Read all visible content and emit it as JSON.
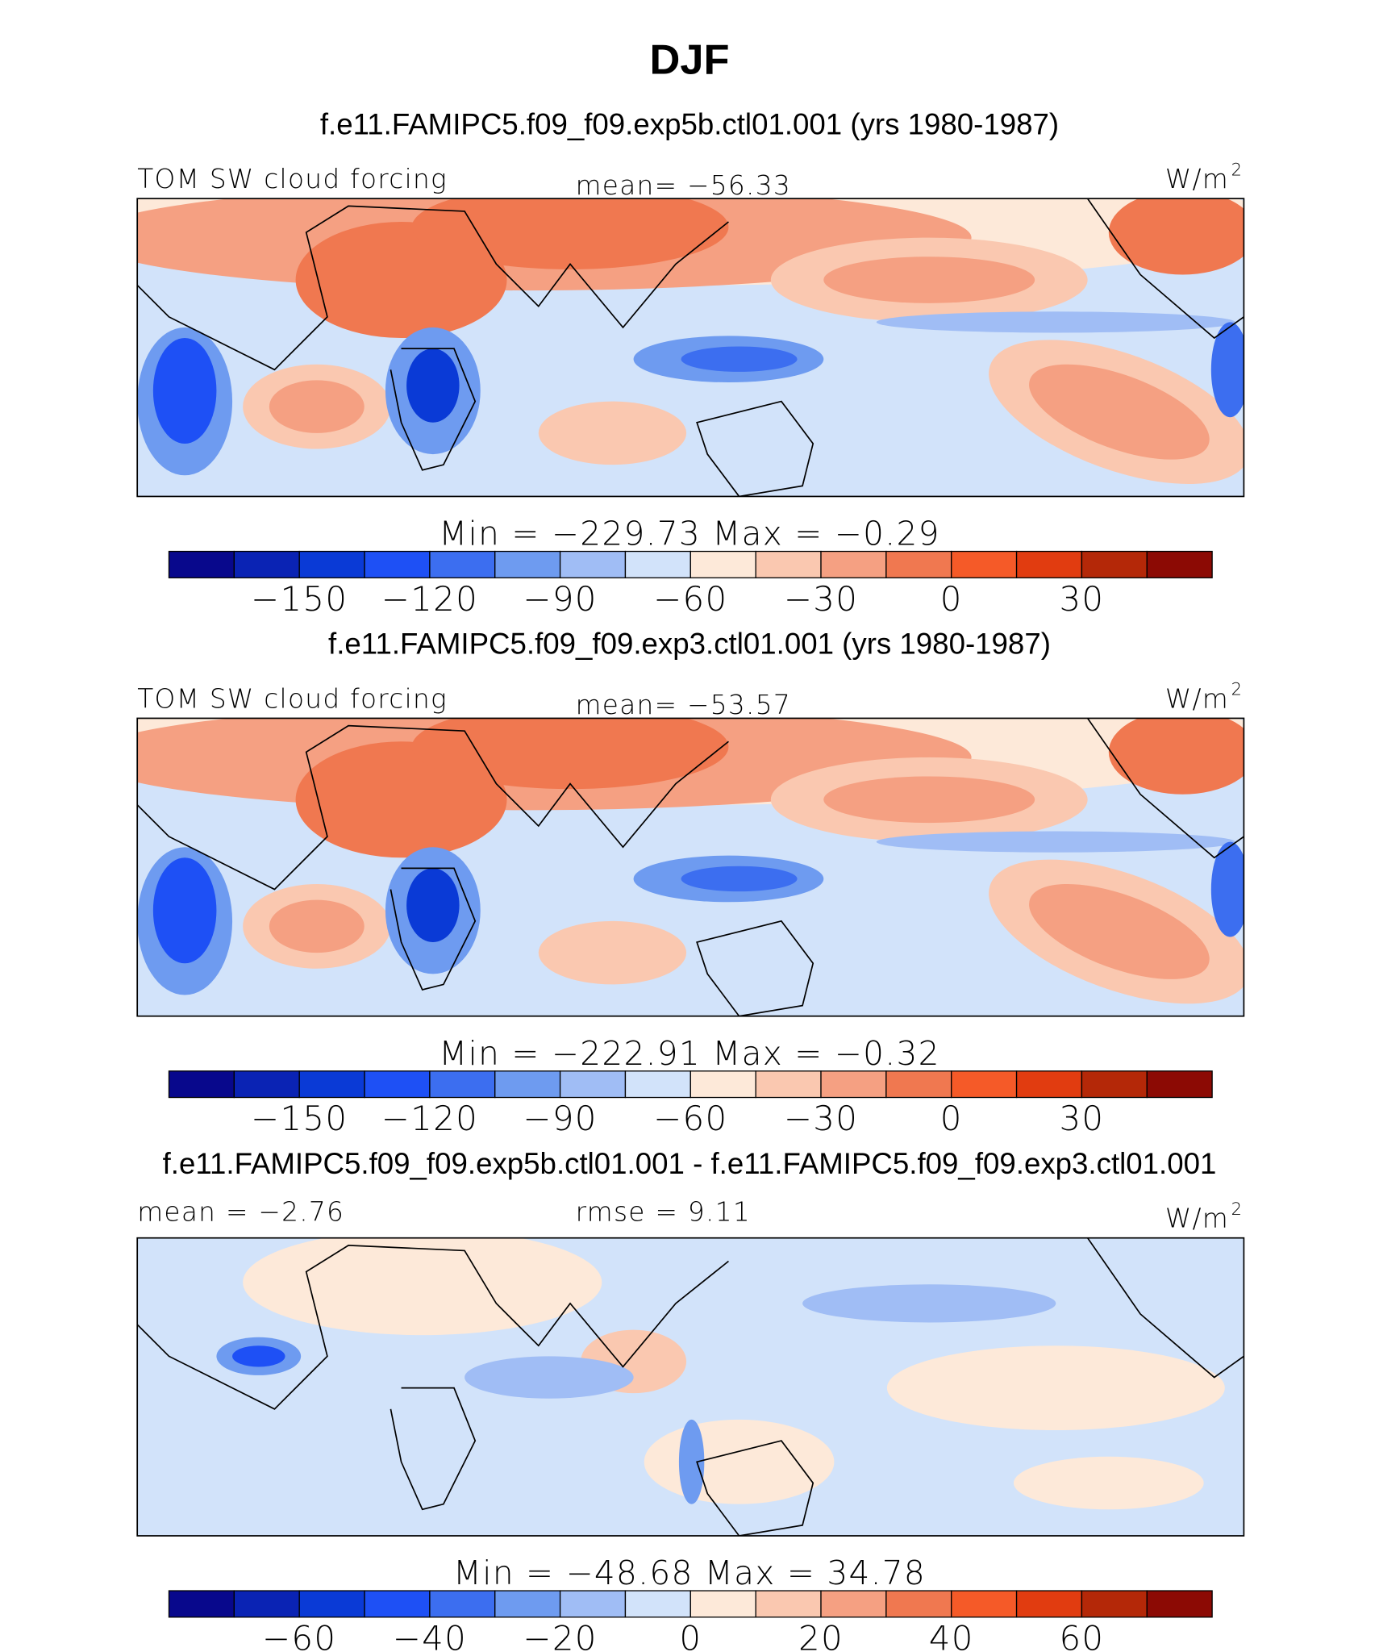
{
  "title": "DJF",
  "panels": [
    {
      "subtitle": "f.e11.FAMIPC5.f09_f09.exp5b.ctl01.001 (yrs 1980-1987)",
      "left_label": "TOM SW cloud forcing",
      "center_label": "mean= −56.33",
      "units": "W/m",
      "units_sup": "2",
      "minmax": "Min = −229.73 Max =  −0.29",
      "colorbar": {
        "range": [
          -180,
          60
        ],
        "ticks": [
          {
            "value": -150,
            "label": "−150"
          },
          {
            "value": -120,
            "label": "−120"
          },
          {
            "value": -90,
            "label": "−90"
          },
          {
            "value": -60,
            "label": "−60"
          },
          {
            "value": -30,
            "label": "−30"
          },
          0,
          30
        ],
        "colors": [
          "#08088c",
          "#0a23b4",
          "#0a3ad6",
          "#1e50f5",
          "#3c6ef0",
          "#6e9bf0",
          "#a0bdf5",
          "#d2e3fa",
          "#fde9d9",
          "#fac8b0",
          "#f5a082",
          "#f07850",
          "#f55a28",
          "#e13c10",
          "#b42808",
          "#8c0a04"
        ]
      }
    },
    {
      "subtitle": "f.e11.FAMIPC5.f09_f09.exp3.ctl01.001 (yrs 1980-1987)",
      "left_label": "TOM SW cloud forcing",
      "center_label": "mean= −53.57",
      "units": "W/m",
      "units_sup": "2",
      "minmax": "Min = −222.91 Max =  −0.32",
      "colorbar": {
        "range": [
          -180,
          60
        ],
        "ticks": [
          {
            "value": -150,
            "label": "−150"
          },
          {
            "value": -120,
            "label": "−120"
          },
          {
            "value": -90,
            "label": "−90"
          },
          {
            "value": -60,
            "label": "−60"
          },
          {
            "value": -30,
            "label": "−30"
          },
          0,
          30
        ],
        "colors": [
          "#08088c",
          "#0a23b4",
          "#0a3ad6",
          "#1e50f5",
          "#3c6ef0",
          "#6e9bf0",
          "#a0bdf5",
          "#d2e3fa",
          "#fde9d9",
          "#fac8b0",
          "#f5a082",
          "#f07850",
          "#f55a28",
          "#e13c10",
          "#b42808",
          "#8c0a04"
        ]
      }
    },
    {
      "subtitle": "f.e11.FAMIPC5.f09_f09.exp5b.ctl01.001 - f.e11.FAMIPC5.f09_f09.exp3.ctl01.001",
      "left_label": "mean =  −2.76",
      "center_label": "rmse =   9.11",
      "units": "W/m",
      "units_sup": "2",
      "minmax": "Min = −48.68 Max =  34.78",
      "colorbar": {
        "range": [
          -80,
          80
        ],
        "ticks": [
          {
            "value": -60,
            "label": "−60"
          },
          {
            "value": -40,
            "label": "−40"
          },
          {
            "value": -20,
            "label": "−20"
          },
          0,
          20,
          40,
          60
        ],
        "colors": [
          "#08088c",
          "#0a23b4",
          "#0a3ad6",
          "#1e50f5",
          "#3c6ef0",
          "#6e9bf0",
          "#a0bdf5",
          "#d2e3fa",
          "#fde9d9",
          "#fac8b0",
          "#f5a082",
          "#f07850",
          "#f55a28",
          "#e13c10",
          "#b42808",
          "#8c0a04"
        ]
      }
    }
  ]
}
